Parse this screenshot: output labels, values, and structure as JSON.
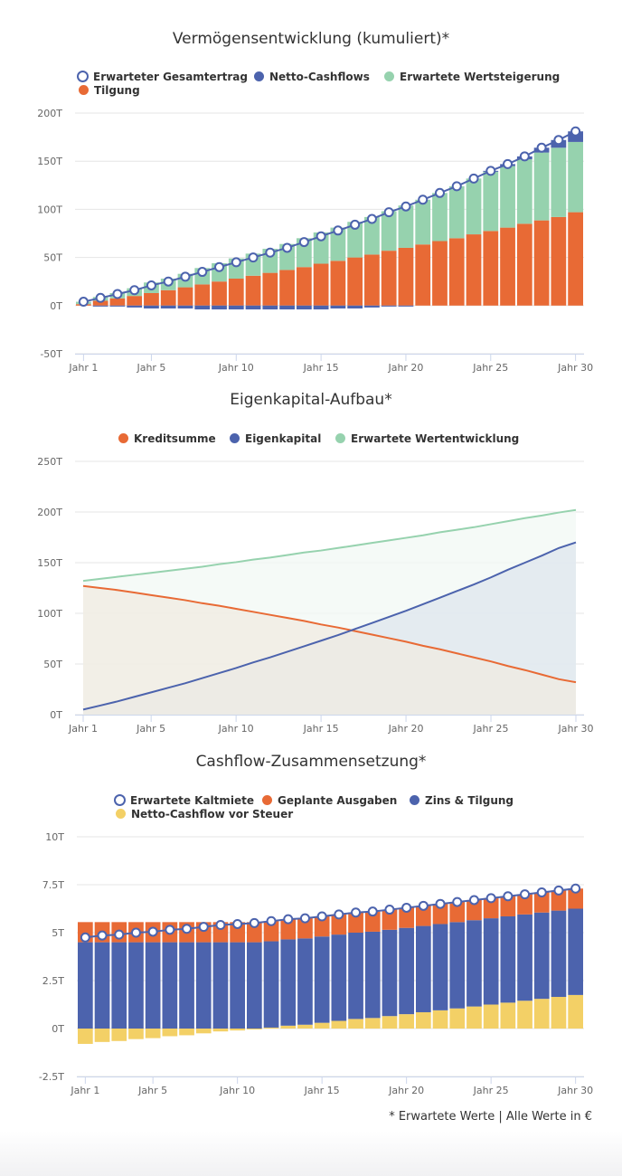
{
  "colors": {
    "blue": "#4c63ad",
    "orange": "#e86a35",
    "green": "#96d2ae",
    "yellow": "#f3d066",
    "grid": "#e6e6e6",
    "axis": "#ccd6eb"
  },
  "chart_data": [
    {
      "type": "bar",
      "stacked": true,
      "title": "Vermögensentwicklung (kumuliert)*",
      "categories": [
        "Jahr 1",
        "Jahr 2",
        "Jahr 3",
        "Jahr 4",
        "Jahr 5",
        "Jahr 6",
        "Jahr 7",
        "Jahr 8",
        "Jahr 9",
        "Jahr 10",
        "Jahr 11",
        "Jahr 12",
        "Jahr 13",
        "Jahr 14",
        "Jahr 15",
        "Jahr 16",
        "Jahr 17",
        "Jahr 18",
        "Jahr 19",
        "Jahr 20",
        "Jahr 21",
        "Jahr 22",
        "Jahr 23",
        "Jahr 24",
        "Jahr 25",
        "Jahr 26",
        "Jahr 27",
        "Jahr 28",
        "Jahr 29",
        "Jahr 30"
      ],
      "xtick_labels": [
        "Jahr 1",
        "Jahr 5",
        "Jahr 10",
        "Jahr 15",
        "Jahr 20",
        "Jahr 25",
        "Jahr 30"
      ],
      "ylim": [
        -50,
        200
      ],
      "yticks": [
        "-50T",
        "0T",
        "50T",
        "100T",
        "150T",
        "200T"
      ],
      "ytick_values": [
        -50,
        0,
        50,
        100,
        150,
        200
      ],
      "grid": true,
      "legend": "top",
      "series": [
        {
          "name": "Erwarteter Gesamtertrag",
          "type": "line",
          "color": "#4c63ad",
          "values": [
            4,
            8,
            12,
            16,
            21,
            25,
            30,
            35,
            40,
            45,
            50,
            55,
            60,
            66,
            72,
            78,
            84,
            90,
            97,
            103,
            110,
            117,
            124,
            132,
            140,
            147,
            155,
            164,
            172,
            181
          ]
        },
        {
          "name": "Netto-Cashflows",
          "type": "bar",
          "color": "#4c63ad",
          "values": [
            0,
            -1,
            -1,
            -2,
            -3,
            -3,
            -3,
            -4,
            -4,
            -4,
            -4,
            -4,
            -4,
            -4,
            -4,
            -3,
            -3,
            -2,
            -1,
            -1,
            0,
            0,
            0,
            0,
            1,
            2,
            3,
            5,
            8,
            11
          ]
        },
        {
          "name": "Erwartete Wertsteigerung",
          "type": "bar",
          "color": "#96d2ae",
          "values": [
            2.5,
            4,
            5.5,
            8,
            11,
            12,
            14,
            17,
            19,
            21,
            23,
            25,
            27,
            30,
            32.5,
            34.5,
            37,
            39,
            41,
            44,
            46.5,
            50,
            54,
            58,
            61.5,
            64,
            67,
            70.5,
            72,
            73
          ]
        },
        {
          "name": "Tilgung",
          "type": "bar",
          "color": "#e86a35",
          "values": [
            1.5,
            5,
            7.5,
            10,
            13,
            16,
            19,
            22,
            25,
            28,
            31,
            34,
            37,
            40,
            43.5,
            46.5,
            50,
            53,
            57,
            60,
            63.5,
            67,
            70,
            74,
            77.5,
            81,
            85,
            88.5,
            92,
            97
          ]
        }
      ]
    },
    {
      "type": "area",
      "title": "Eigenkapital-Aufbau*",
      "xtick_labels": [
        "Jahr 1",
        "Jahr 5",
        "Jahr 10",
        "Jahr 15",
        "Jahr 20",
        "Jahr 25",
        "Jahr 30"
      ],
      "ylim": [
        0,
        250
      ],
      "yticks": [
        "0T",
        "50T",
        "100T",
        "150T",
        "200T",
        "250T"
      ],
      "ytick_values": [
        0,
        50,
        100,
        150,
        200,
        250
      ],
      "grid": true,
      "legend": "top",
      "series": [
        {
          "name": "Kreditsumme",
          "color": "#e86a35",
          "fill": "#f0ebe2",
          "values": [
            127,
            125,
            123,
            120.5,
            118,
            115.5,
            113,
            110,
            107.5,
            104.5,
            101.5,
            98.5,
            95.5,
            92.5,
            89,
            86,
            82.5,
            79,
            75.5,
            72,
            68,
            64.5,
            60.5,
            56.5,
            52.5,
            48,
            44,
            39.5,
            35,
            32
          ]
        },
        {
          "name": "Eigenkapital",
          "color": "#4c63ad",
          "fill": "#dde6ee",
          "values": [
            5,
            9,
            13,
            17.5,
            22,
            26.5,
            31,
            36,
            41,
            46,
            51.5,
            56.5,
            62,
            67.5,
            73,
            78.5,
            84.5,
            90.5,
            96.5,
            102.5,
            109,
            115.5,
            122,
            128.5,
            135.5,
            143,
            150,
            157,
            164.5,
            170
          ]
        },
        {
          "name": "Erwartete Wertentwicklung",
          "color": "#96d2ae",
          "fill": "#f2f8f4",
          "values": [
            132,
            134,
            136,
            138,
            140,
            142,
            144,
            146,
            148.5,
            150.5,
            153,
            155,
            157.5,
            160,
            162,
            164.5,
            167,
            169.5,
            172,
            174.5,
            177,
            180,
            182.5,
            185,
            188,
            191,
            194,
            196.5,
            199.5,
            202
          ]
        }
      ]
    },
    {
      "type": "bar",
      "stacked": true,
      "title": "Cashflow-Zusammensetzung*",
      "xtick_labels": [
        "Jahr 1",
        "Jahr 5",
        "Jahr 10",
        "Jahr 15",
        "Jahr 20",
        "Jahr 25",
        "Jahr 30"
      ],
      "ylim": [
        -2.5,
        10
      ],
      "yticks": [
        "-2.5T",
        "0T",
        "2.5T",
        "5T",
        "7.5T",
        "10T"
      ],
      "ytick_values": [
        -2.5,
        0,
        2.5,
        5,
        7.5,
        10
      ],
      "grid": true,
      "legend": "top",
      "series": [
        {
          "name": "Erwartete Kaltmiete",
          "type": "line",
          "color": "#4c63ad",
          "values": [
            4.75,
            4.85,
            4.9,
            5.0,
            5.05,
            5.15,
            5.2,
            5.3,
            5.4,
            5.45,
            5.5,
            5.6,
            5.7,
            5.75,
            5.85,
            5.95,
            6.05,
            6.1,
            6.2,
            6.3,
            6.4,
            6.5,
            6.6,
            6.7,
            6.8,
            6.9,
            7.0,
            7.1,
            7.2,
            7.3
          ]
        },
        {
          "name": "Geplante Ausgaben",
          "type": "bar",
          "color": "#e86a35",
          "values": [
            1.05,
            1.05,
            1.05,
            1.05,
            1.05,
            1.05,
            1.05,
            1.05,
            1.05,
            1.05,
            1.05,
            1.05,
            1.05,
            1.05,
            1.05,
            1.05,
            1.05,
            1.05,
            1.05,
            1.05,
            1.05,
            1.05,
            1.05,
            1.05,
            1.05,
            1.05,
            1.05,
            1.05,
            1.05,
            1.05
          ]
        },
        {
          "name": "Zins & Tilgung",
          "type": "bar",
          "color": "#4c63ad",
          "values": [
            4.5,
            4.5,
            4.5,
            4.5,
            4.5,
            4.5,
            4.5,
            4.5,
            4.5,
            4.5,
            4.5,
            4.5,
            4.5,
            4.5,
            4.5,
            4.5,
            4.5,
            4.5,
            4.5,
            4.5,
            4.5,
            4.5,
            4.5,
            4.5,
            4.5,
            4.5,
            4.5,
            4.5,
            4.5,
            4.5
          ]
        },
        {
          "name": "Netto-Cashflow vor Steuer",
          "type": "bar",
          "color": "#f3d066",
          "values": [
            -0.8,
            -0.7,
            -0.65,
            -0.55,
            -0.5,
            -0.4,
            -0.35,
            -0.25,
            -0.15,
            -0.1,
            -0.05,
            0.05,
            0.15,
            0.2,
            0.3,
            0.4,
            0.5,
            0.55,
            0.65,
            0.75,
            0.85,
            0.95,
            1.05,
            1.15,
            1.25,
            1.35,
            1.45,
            1.55,
            1.65,
            1.75
          ]
        }
      ]
    }
  ],
  "footer": "* Erwartete Werte | Alle Werte in €"
}
